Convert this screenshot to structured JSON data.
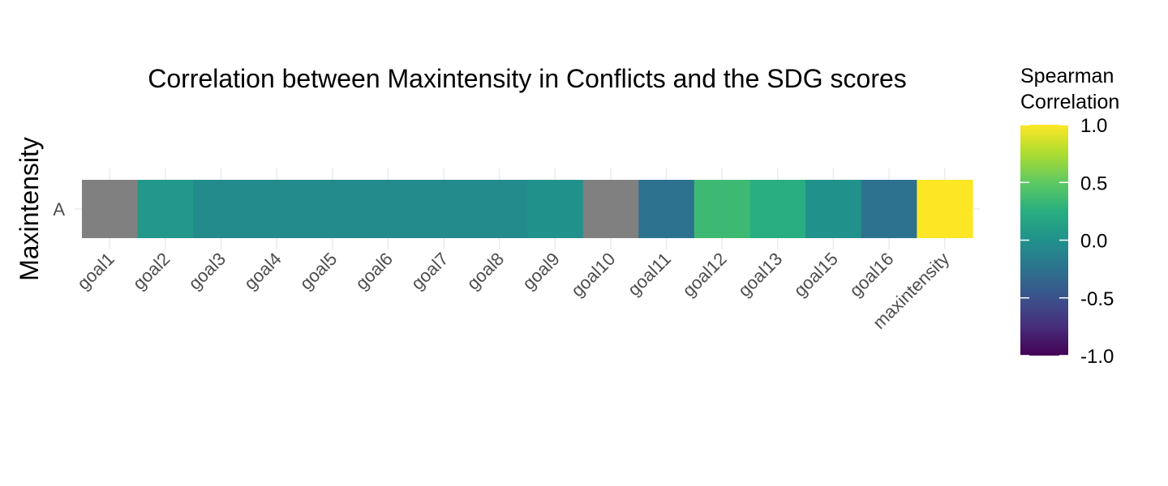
{
  "chart_data": {
    "type": "heatmap",
    "title": "Correlation between Maxintensity in Conflicts and the SDG scores",
    "xlabel": "",
    "ylabel": "Maxintensity",
    "y_categories": [
      "A"
    ],
    "x_categories": [
      "goal1",
      "goal2",
      "goal3",
      "goal4",
      "goal5",
      "goal6",
      "goal7",
      "goal8",
      "goal9",
      "goal10",
      "goal11",
      "goal12",
      "goal13",
      "goal15",
      "goal16",
      "maxintensity"
    ],
    "values": [
      null,
      0.05,
      -0.05,
      -0.05,
      -0.05,
      -0.05,
      -0.05,
      -0.05,
      0.0,
      null,
      -0.25,
      0.35,
      0.25,
      0.0,
      -0.25,
      1.0
    ],
    "na_color": "#808080",
    "legend": {
      "title_lines": [
        "Spearman",
        "Correlation"
      ],
      "ticks": [
        "1.0",
        "0.5",
        "0.0",
        "-0.5",
        "-1.0"
      ],
      "range": [
        -1,
        1
      ],
      "palette": "viridis",
      "position": "right"
    },
    "grid": true
  }
}
